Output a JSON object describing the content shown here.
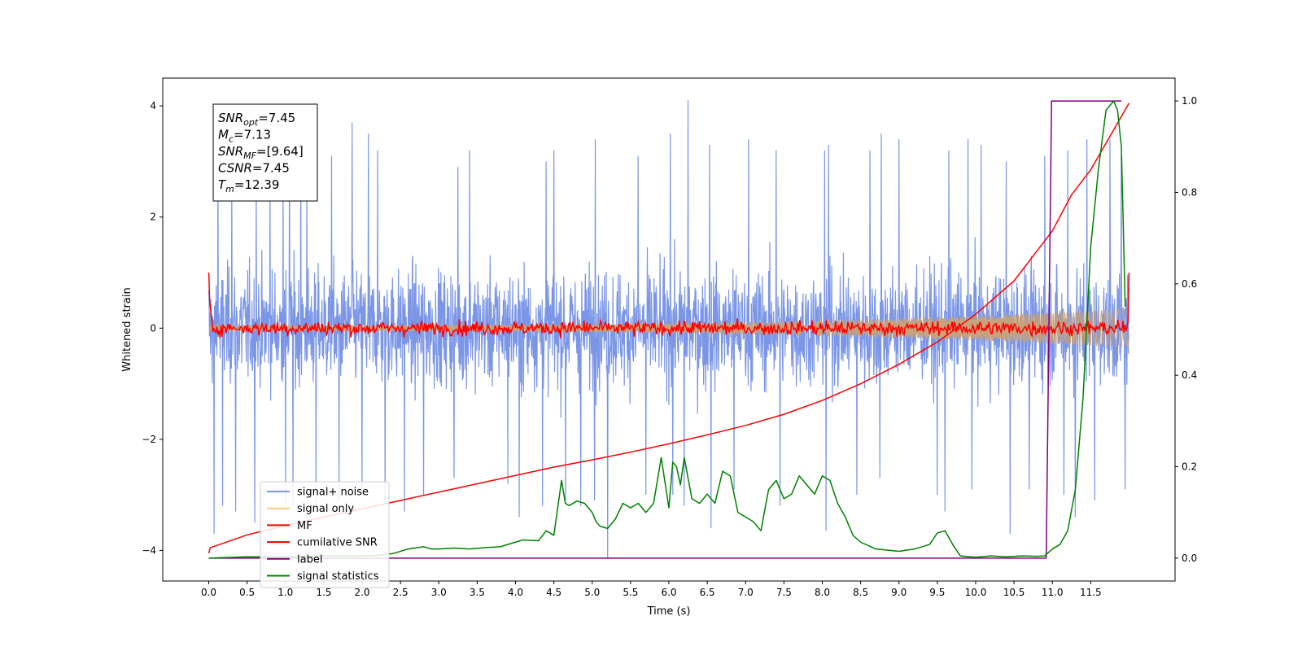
{
  "chart_data": {
    "type": "line",
    "xlabel": "Time (s)",
    "ylabel": "Whitened strain",
    "xlim": [
      -0.6,
      12.6
    ],
    "ylim": [
      -4.55,
      4.5
    ],
    "ylim_right": [
      -0.05,
      1.05
    ],
    "xticks": [
      0.0,
      0.5,
      1.0,
      1.5,
      2.0,
      2.5,
      3.0,
      3.5,
      4.0,
      4.5,
      5.0,
      5.5,
      6.0,
      6.5,
      7.0,
      7.5,
      8.0,
      8.5,
      9.0,
      9.5,
      10.0,
      10.5,
      11.0,
      11.5
    ],
    "xtick_labels": [
      "0.0",
      "0.5",
      "1.0",
      "1.5",
      "2.0",
      "2.5",
      "3.0",
      "3.5",
      "4.0",
      "4.5",
      "5.0",
      "5.5",
      "6.0",
      "6.5",
      "7.0",
      "7.5",
      "8.0",
      "8.5",
      "9.0",
      "9.5",
      "10.0",
      "10.5",
      "11.0",
      "11.5"
    ],
    "yticks_left": [
      -4,
      -2,
      0,
      2,
      4
    ],
    "ytick_labels_left": [
      "−4",
      "−2",
      "0",
      "2",
      "4"
    ],
    "yticks_right": [
      0.0,
      0.2,
      0.4,
      0.6,
      0.8,
      1.0
    ],
    "ytick_labels_right": [
      "0.0",
      "0.2",
      "0.4",
      "0.6",
      "0.8",
      "1.0"
    ],
    "grid": false,
    "legend_position": "lower-left",
    "annotation": [
      {
        "sym": "SNR",
        "sub": "opt",
        "value": "=7.45"
      },
      {
        "sym": "M",
        "sub": "c",
        "value": "=7.13"
      },
      {
        "sym": "SNR",
        "sub": "MF",
        "value": "=[9.64]"
      },
      {
        "sym": "CSNR",
        "sub": "",
        "value": "=7.45"
      },
      {
        "sym": "T",
        "sub": "m",
        "value": "=12.39"
      }
    ],
    "series": [
      {
        "name": "signal+ noise",
        "color": "#7b96e6",
        "axis": "left",
        "style": "noise",
        "x_range": [
          0.0,
          12.0
        ],
        "band_upper": 1.9,
        "band_lower": -1.9,
        "x_spikes": [
          [
            0.07,
            2.4
          ],
          [
            0.12,
            3.5
          ],
          [
            0.3,
            2.8
          ],
          [
            0.62,
            2.7
          ],
          [
            0.8,
            2.9
          ],
          [
            0.97,
            2.9
          ],
          [
            1.05,
            3.3
          ],
          [
            1.2,
            3.5
          ],
          [
            1.28,
            2.7
          ],
          [
            1.6,
            3.1
          ],
          [
            1.87,
            3.7
          ],
          [
            2.08,
            3.5
          ],
          [
            2.2,
            3.2
          ],
          [
            2.8,
            2.9
          ],
          [
            3.25,
            2.9
          ],
          [
            3.4,
            3.2
          ],
          [
            4.05,
            2.8
          ],
          [
            4.4,
            3.0
          ],
          [
            4.5,
            3.2
          ],
          [
            5.04,
            3.4
          ],
          [
            5.6,
            3.1
          ],
          [
            6.02,
            3.5
          ],
          [
            6.25,
            4.1
          ],
          [
            6.53,
            3.3
          ],
          [
            7.04,
            3.4
          ],
          [
            7.4,
            3.2
          ],
          [
            8.03,
            3.2
          ],
          [
            8.08,
            3.3
          ],
          [
            8.62,
            3.2
          ],
          [
            8.77,
            3.5
          ],
          [
            9.0,
            3.4
          ],
          [
            9.65,
            3.2
          ],
          [
            9.9,
            3.4
          ],
          [
            10.07,
            3.3
          ],
          [
            10.4,
            3.0
          ],
          [
            10.9,
            3.1
          ],
          [
            11.2,
            3.2
          ],
          [
            11.45,
            3.4
          ],
          [
            11.75,
            3.4
          ],
          [
            11.9,
            3.1
          ]
        ],
        "x_dips": [
          [
            0.07,
            -3.7
          ],
          [
            0.18,
            -3.2
          ],
          [
            0.35,
            -3.3
          ],
          [
            0.6,
            -3.5
          ],
          [
            1.0,
            -3.2
          ],
          [
            1.1,
            -3.2
          ],
          [
            1.4,
            -3.3
          ],
          [
            1.7,
            -3.1
          ],
          [
            2.0,
            -3.0
          ],
          [
            2.3,
            -3.1
          ],
          [
            2.55,
            -3.3
          ],
          [
            2.8,
            -3.0
          ],
          [
            3.2,
            -2.7
          ],
          [
            3.9,
            -2.8
          ],
          [
            4.05,
            -3.4
          ],
          [
            4.35,
            -3.2
          ],
          [
            4.65,
            -3.1
          ],
          [
            4.85,
            -3.2
          ],
          [
            5.03,
            -3.1
          ],
          [
            5.2,
            -4.15
          ],
          [
            5.7,
            -3.0
          ],
          [
            6.05,
            -3.0
          ],
          [
            6.2,
            -3.2
          ],
          [
            6.55,
            -3.6
          ],
          [
            6.85,
            -2.9
          ],
          [
            7.45,
            -3.2
          ],
          [
            8.05,
            -3.65
          ],
          [
            8.45,
            -3.0
          ],
          [
            8.75,
            -2.7
          ],
          [
            9.5,
            -3.0
          ],
          [
            9.6,
            -3.3
          ],
          [
            9.95,
            -2.9
          ],
          [
            10.45,
            -3.7
          ],
          [
            10.7,
            -2.9
          ],
          [
            11.15,
            -3.0
          ],
          [
            11.3,
            -3.4
          ],
          [
            11.55,
            -3.1
          ],
          [
            11.95,
            -2.9
          ]
        ]
      },
      {
        "name": "signal only",
        "color": "#f5cd7a",
        "axis": "left",
        "style": "chirp",
        "x_range": [
          0.0,
          12.0
        ],
        "amp_start": 0.05,
        "amp_end": 0.35
      },
      {
        "name": "MF",
        "color": "#ff0000",
        "axis": "left",
        "style": "mf",
        "x_range": [
          0.0,
          12.0
        ],
        "start_value": 1.0,
        "end_value": 1.0,
        "noise_amp": 0.09
      },
      {
        "name": "cumilative SNR",
        "color": "#ff0000",
        "axis": "left",
        "style": "line",
        "x": [
          0.0,
          0.02,
          0.5,
          1.0,
          1.5,
          2.0,
          2.5,
          3.0,
          3.5,
          4.0,
          4.5,
          5.0,
          5.5,
          6.0,
          6.5,
          7.0,
          7.5,
          8.0,
          8.5,
          9.0,
          9.5,
          10.0,
          10.5,
          11.0,
          11.25,
          11.5,
          11.75,
          12.0
        ],
        "y": [
          -4.05,
          -3.95,
          -3.72,
          -3.55,
          -3.4,
          -3.25,
          -3.1,
          -2.95,
          -2.8,
          -2.65,
          -2.5,
          -2.37,
          -2.23,
          -2.08,
          -1.92,
          -1.75,
          -1.55,
          -1.3,
          -1.0,
          -0.65,
          -0.25,
          0.25,
          0.85,
          1.75,
          2.4,
          2.85,
          3.45,
          4.05
        ]
      },
      {
        "name": "label",
        "color": "#800080",
        "axis": "right",
        "style": "line",
        "x": [
          0.0,
          10.92,
          10.99,
          11.9
        ],
        "y": [
          0.0,
          0.0,
          1.0,
          1.0
        ]
      },
      {
        "name": "signal statistics",
        "color": "#008000",
        "axis": "right",
        "style": "line",
        "x": [
          0.0,
          0.5,
          1.0,
          1.5,
          2.0,
          2.2,
          2.4,
          2.6,
          2.8,
          2.9,
          3.0,
          3.2,
          3.4,
          3.6,
          3.8,
          4.0,
          4.1,
          4.3,
          4.4,
          4.5,
          4.6,
          4.65,
          4.7,
          4.8,
          4.9,
          5.0,
          5.05,
          5.1,
          5.2,
          5.3,
          5.4,
          5.5,
          5.6,
          5.7,
          5.8,
          5.9,
          6.0,
          6.05,
          6.1,
          6.15,
          6.2,
          6.3,
          6.4,
          6.5,
          6.6,
          6.7,
          6.8,
          6.9,
          7.0,
          7.1,
          7.2,
          7.3,
          7.4,
          7.5,
          7.6,
          7.7,
          7.8,
          7.9,
          8.0,
          8.1,
          8.2,
          8.3,
          8.4,
          8.5,
          8.7,
          9.0,
          9.2,
          9.4,
          9.5,
          9.6,
          9.7,
          9.8,
          10.0,
          10.2,
          10.4,
          10.6,
          10.8,
          10.9,
          11.0,
          11.1,
          11.2,
          11.3,
          11.4,
          11.5,
          11.6,
          11.7,
          11.8,
          11.85,
          11.9,
          11.95
        ],
        "y": [
          0.0,
          0.003,
          0.003,
          0.005,
          0.005,
          0.006,
          0.01,
          0.02,
          0.025,
          0.02,
          0.02,
          0.022,
          0.02,
          0.023,
          0.025,
          0.035,
          0.04,
          0.038,
          0.06,
          0.05,
          0.17,
          0.12,
          0.115,
          0.125,
          0.12,
          0.1,
          0.08,
          0.07,
          0.065,
          0.085,
          0.12,
          0.11,
          0.12,
          0.1,
          0.12,
          0.22,
          0.11,
          0.21,
          0.2,
          0.16,
          0.22,
          0.13,
          0.12,
          0.14,
          0.12,
          0.19,
          0.18,
          0.1,
          0.09,
          0.08,
          0.06,
          0.15,
          0.17,
          0.13,
          0.14,
          0.18,
          0.16,
          0.14,
          0.18,
          0.17,
          0.12,
          0.09,
          0.05,
          0.035,
          0.02,
          0.015,
          0.02,
          0.03,
          0.055,
          0.06,
          0.03,
          0.005,
          0.002,
          0.005,
          0.003,
          0.005,
          0.004,
          0.005,
          0.02,
          0.03,
          0.06,
          0.15,
          0.35,
          0.68,
          0.85,
          0.98,
          1.0,
          0.98,
          0.9,
          0.55
        ]
      }
    ]
  }
}
